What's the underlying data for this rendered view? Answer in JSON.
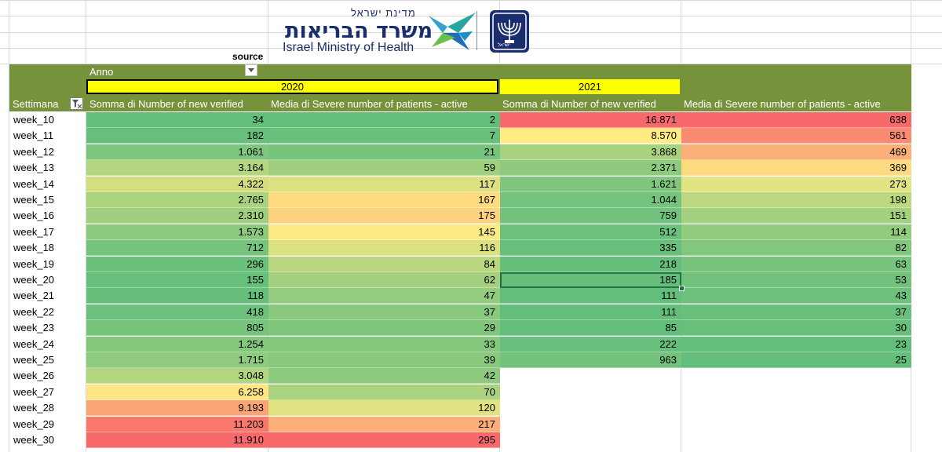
{
  "logo": {
    "hebrew_top": "מדינת ישראל",
    "hebrew_main": "משרד הבריאות",
    "english": "Israel Ministry of Health",
    "emblem_label": "ישראל",
    "icon": "ministry-emblem"
  },
  "pivot": {
    "source_label": "source",
    "anno_label": "Anno",
    "years": [
      "2020",
      "2021"
    ],
    "row_field_label": "Settimana",
    "column_headers": [
      "Somma di Number of new verified",
      "Media di Severe number of patients - active",
      "Somma di Number of new verified",
      "Media di Severe number of patients - active"
    ],
    "rows": [
      {
        "week": "week_10",
        "v2020": "34",
        "s2020": "2",
        "v2021": "16.871",
        "s2021": "638"
      },
      {
        "week": "week_11",
        "v2020": "182",
        "s2020": "7",
        "v2021": "8.570",
        "s2021": "561"
      },
      {
        "week": "week_12",
        "v2020": "1.061",
        "s2020": "21",
        "v2021": "3.868",
        "s2021": "469"
      },
      {
        "week": "week_13",
        "v2020": "3.164",
        "s2020": "59",
        "v2021": "2.371",
        "s2021": "369"
      },
      {
        "week": "week_14",
        "v2020": "4.322",
        "s2020": "117",
        "v2021": "1.621",
        "s2021": "273"
      },
      {
        "week": "week_15",
        "v2020": "2.765",
        "s2020": "167",
        "v2021": "1.044",
        "s2021": "198"
      },
      {
        "week": "week_16",
        "v2020": "2.310",
        "s2020": "175",
        "v2021": "759",
        "s2021": "151"
      },
      {
        "week": "week_17",
        "v2020": "1.573",
        "s2020": "145",
        "v2021": "512",
        "s2021": "114"
      },
      {
        "week": "week_18",
        "v2020": "712",
        "s2020": "116",
        "v2021": "335",
        "s2021": "82"
      },
      {
        "week": "week_19",
        "v2020": "296",
        "s2020": "84",
        "v2021": "218",
        "s2021": "63"
      },
      {
        "week": "week_20",
        "v2020": "155",
        "s2020": "62",
        "v2021": "185",
        "s2021": "53"
      },
      {
        "week": "week_21",
        "v2020": "118",
        "s2020": "47",
        "v2021": "111",
        "s2021": "43"
      },
      {
        "week": "week_22",
        "v2020": "418",
        "s2020": "37",
        "v2021": "111",
        "s2021": "37"
      },
      {
        "week": "week_23",
        "v2020": "805",
        "s2020": "29",
        "v2021": "85",
        "s2021": "30"
      },
      {
        "week": "week_24",
        "v2020": "1.254",
        "s2020": "33",
        "v2021": "222",
        "s2021": "23"
      },
      {
        "week": "week_25",
        "v2020": "1.715",
        "s2020": "39",
        "v2021": "963",
        "s2021": "25"
      },
      {
        "week": "week_26",
        "v2020": "3.048",
        "s2020": "42",
        "v2021": "",
        "s2021": ""
      },
      {
        "week": "week_27",
        "v2020": "6.258",
        "s2020": "70",
        "v2021": "",
        "s2021": ""
      },
      {
        "week": "week_28",
        "v2020": "9.193",
        "s2020": "120",
        "v2021": "",
        "s2021": ""
      },
      {
        "week": "week_29",
        "v2020": "11.203",
        "s2020": "217",
        "v2021": "",
        "s2021": ""
      },
      {
        "week": "week_30",
        "v2020": "11.910",
        "s2020": "295",
        "v2021": "",
        "s2021": ""
      }
    ],
    "selected_cell": "week_20 / 2021 Somma di Number of new verified"
  },
  "colors": {
    "header_band": "#76933c",
    "year_highlight": "#ffff00",
    "selection": "#217346",
    "gridline": "#d9d9d9",
    "scale_low": "#63be7b",
    "scale_mid": "#ffeb84",
    "scale_high": "#f8696b"
  }
}
